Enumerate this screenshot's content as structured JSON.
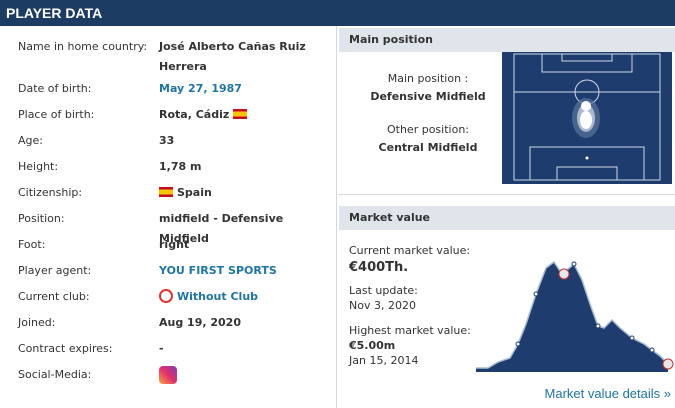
{
  "header": {
    "title": "PLAYER DATA"
  },
  "table": {
    "rows": [
      [
        "Name in home country:",
        "José Alberto Cañas Ruiz Herrera"
      ],
      [
        "Date of birth:",
        "May 27, 1987"
      ],
      [
        "Place of birth:",
        "Rota, Cádiz"
      ],
      [
        "Age:",
        "33"
      ],
      [
        "Height:",
        "1,78 m"
      ],
      [
        "Citizenship:",
        "Spain"
      ],
      [
        "Position:",
        "midfield - Defensive Midfield"
      ],
      [
        "Foot:",
        "right"
      ],
      [
        "Player agent:",
        "YOU FIRST SPORTS"
      ],
      [
        "Current club:",
        "Without Club"
      ],
      [
        "Joined:",
        "Aug 19, 2020"
      ],
      [
        "Contract expires:",
        "-"
      ],
      [
        "Social-Media:",
        ""
      ]
    ]
  },
  "main_position": {
    "title": "Main position",
    "main_label": "Main position :",
    "main_value": "Defensive Midfield",
    "other_label": "Other position:",
    "other_value": "Central Midfield"
  },
  "market_value": {
    "title": "Market value",
    "current_label": "Current market value:",
    "current_value": "€400Th.",
    "update_label": "Last update:",
    "update_value": "Nov 3, 2020",
    "highest_label": "Highest market value:",
    "highest_value": "€5.00m",
    "highest_date": "Jan 15, 2014",
    "link": "Market value details »"
  }
}
